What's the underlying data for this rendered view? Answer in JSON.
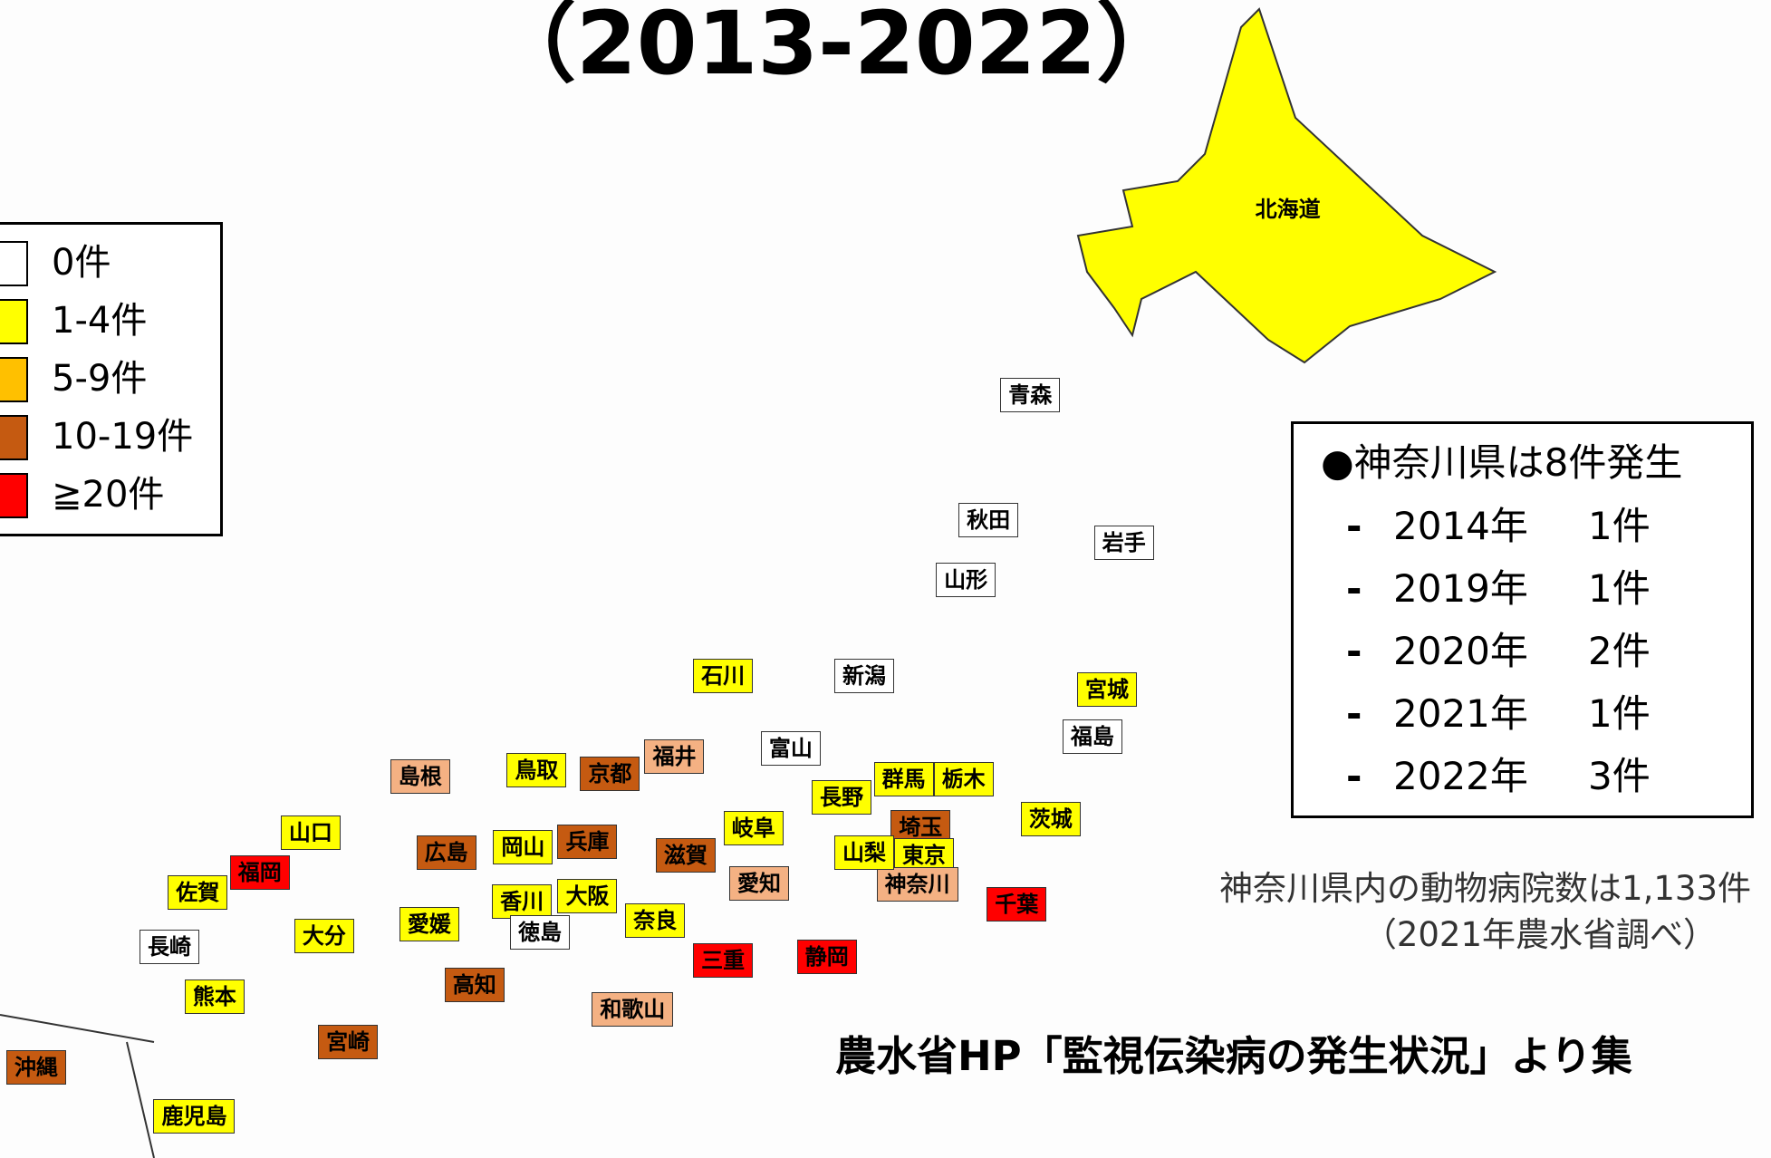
{
  "title": "（2013-2022）",
  "legend": [
    {
      "label": "0件",
      "color": "#ffffff"
    },
    {
      "label": "1-4件",
      "color": "#ffff00"
    },
    {
      "label": "5-9件",
      "color": "#ffc000"
    },
    {
      "label": "10-19件",
      "color": "#c55a11"
    },
    {
      "label": "≧20件",
      "color": "#ff0000"
    }
  ],
  "prefectures": [
    {
      "name": "北海道",
      "color": "#ffff00"
    },
    {
      "name": "青森",
      "color": "#ffffff"
    },
    {
      "name": "秋田",
      "color": "#ffffff"
    },
    {
      "name": "岩手",
      "color": "#ffffff"
    },
    {
      "name": "山形",
      "color": "#ffffff"
    },
    {
      "name": "宮城",
      "color": "#ffff00"
    },
    {
      "name": "新潟",
      "color": "#ffffff"
    },
    {
      "name": "福島",
      "color": "#ffffff"
    },
    {
      "name": "石川",
      "color": "#ffff00"
    },
    {
      "name": "富山",
      "color": "#ffffff"
    },
    {
      "name": "福井",
      "color": "#f4b183"
    },
    {
      "name": "長野",
      "color": "#ffff00"
    },
    {
      "name": "群馬",
      "color": "#ffff00"
    },
    {
      "name": "栃木",
      "color": "#ffff00"
    },
    {
      "name": "茨城",
      "color": "#ffff00"
    },
    {
      "name": "埼玉",
      "color": "#c55a11"
    },
    {
      "name": "東京",
      "color": "#ffff00"
    },
    {
      "name": "神奈川",
      "color": "#f4b183"
    },
    {
      "name": "山梨",
      "color": "#ffff00"
    },
    {
      "name": "千葉",
      "color": "#ff0000"
    },
    {
      "name": "静岡",
      "color": "#ff0000"
    },
    {
      "name": "愛知",
      "color": "#f4b183"
    },
    {
      "name": "岐阜",
      "color": "#ffff00"
    },
    {
      "name": "三重",
      "color": "#ff0000"
    },
    {
      "name": "滋賀",
      "color": "#c55a11"
    },
    {
      "name": "京都",
      "color": "#c55a11"
    },
    {
      "name": "兵庫",
      "color": "#c55a11"
    },
    {
      "name": "大阪",
      "color": "#ffff00"
    },
    {
      "name": "奈良",
      "color": "#ffff00"
    },
    {
      "name": "和歌山",
      "color": "#f4b183"
    },
    {
      "name": "鳥取",
      "color": "#ffff00"
    },
    {
      "name": "島根",
      "color": "#f4b183"
    },
    {
      "name": "岡山",
      "color": "#ffff00"
    },
    {
      "name": "広島",
      "color": "#c55a11"
    },
    {
      "name": "山口",
      "color": "#ffff00"
    },
    {
      "name": "香川",
      "color": "#ffff00"
    },
    {
      "name": "徳島",
      "color": "#ffffff"
    },
    {
      "name": "愛媛",
      "color": "#ffff00"
    },
    {
      "name": "高知",
      "color": "#c55a11"
    },
    {
      "name": "福岡",
      "color": "#ff0000"
    },
    {
      "name": "佐賀",
      "color": "#ffff00"
    },
    {
      "name": "長崎",
      "color": "#ffffff"
    },
    {
      "name": "大分",
      "color": "#ffff00"
    },
    {
      "name": "熊本",
      "color": "#ffff00"
    },
    {
      "name": "宮崎",
      "color": "#c55a11"
    },
    {
      "name": "鹿児島",
      "color": "#ffff00"
    },
    {
      "name": "沖縄",
      "color": "#c55a11"
    }
  ],
  "info": {
    "heading": "●神奈川県は8件発生",
    "marker": "-",
    "rows": [
      {
        "year": "2014年",
        "count": "1件"
      },
      {
        "year": "2019年",
        "count": "1件"
      },
      {
        "year": "2020年",
        "count": "2件"
      },
      {
        "year": "2021年",
        "count": "1件"
      },
      {
        "year": "2022年",
        "count": "3件"
      }
    ]
  },
  "notes": [
    "神奈川県内の動物病院数は1,133件",
    "（2021年農水省調べ）"
  ],
  "source": "農水省HP「監視伝染病の発生状況」より集"
}
